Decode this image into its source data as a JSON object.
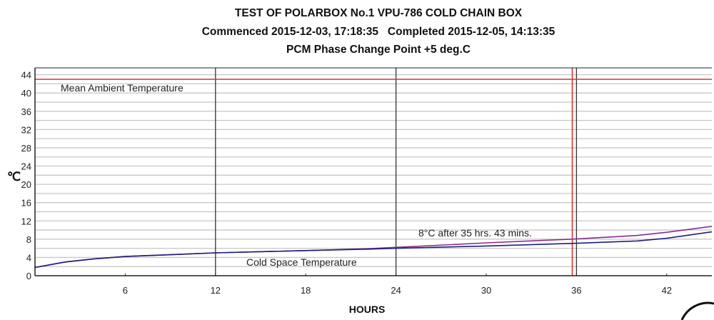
{
  "chart_data": {
    "type": "line",
    "title": "TEST OF POLARBOX No.1 VPU-786 COLD CHAIN BOX",
    "subtitle": "Commenced 2015-12-03, 17:18:35   Completed 2015-12-05, 14:13:35",
    "subtitle2": "PCM Phase Change Point +5 deg.C",
    "xlabel": "HOURS",
    "ylabel": "℃",
    "xlim": [
      0,
      45
    ],
    "ylim": [
      0,
      45.5
    ],
    "xticks": [
      "6",
      "12",
      "18",
      "24",
      "30",
      "36",
      "42"
    ],
    "xtick_values": [
      6,
      12,
      18,
      24,
      30,
      36,
      42
    ],
    "yticks": [
      "0",
      "4",
      "8",
      "12",
      "16",
      "20",
      "24",
      "28",
      "32",
      "36",
      "40",
      "44"
    ],
    "ytick_values": [
      0,
      4,
      8,
      12,
      16,
      20,
      24,
      28,
      32,
      36,
      40,
      44
    ],
    "grid": "horizontal every 2",
    "vertical_lines": [
      12,
      24,
      36
    ],
    "ambient_temperature": 43,
    "marker_hours": 35.72,
    "annotations": {
      "ambient": "Mean Ambient Temperature",
      "cold_space": "Cold Space Temperature",
      "marker": "8°C after 35 hrs. 43 mins."
    },
    "series": [
      {
        "name": "Cold Space Temperature (upper)",
        "color": "#8a2c8c",
        "x": [
          0,
          2,
          4,
          6,
          9,
          12,
          18,
          22,
          24,
          30,
          35.72,
          40,
          42,
          45
        ],
        "y": [
          1.8,
          3.0,
          3.7,
          4.2,
          4.6,
          5.0,
          5.5,
          5.9,
          6.2,
          7.2,
          8.0,
          8.8,
          9.5,
          10.8
        ]
      },
      {
        "name": "Cold Space Temperature (lower)",
        "color": "#1f1f7a",
        "x": [
          0,
          2,
          4,
          6,
          9,
          12,
          18,
          22,
          24,
          30,
          36,
          40,
          42,
          45
        ],
        "y": [
          1.8,
          3.0,
          3.7,
          4.2,
          4.6,
          5.0,
          5.5,
          5.8,
          6.0,
          6.5,
          7.1,
          7.6,
          8.2,
          9.6
        ]
      }
    ],
    "colors": {
      "ambient": "#e03030",
      "marker": "#e03030",
      "grid": "#c8c8c8",
      "vline": "#333333"
    }
  }
}
